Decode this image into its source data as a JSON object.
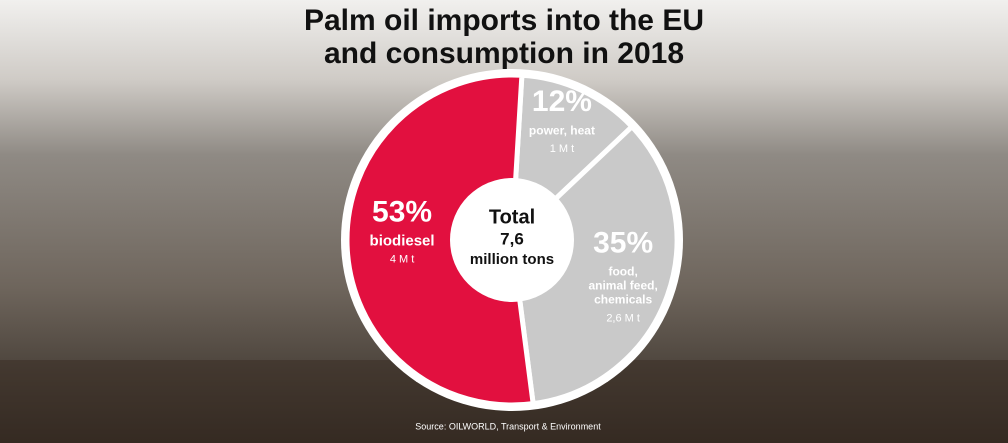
{
  "chart_data": {
    "type": "pie",
    "title": [
      "Palm oil imports into the EU",
      "and consumption in 2018"
    ],
    "categories": [
      "power, heat",
      "food, animal feed, chemicals",
      "biodiesel"
    ],
    "values": [
      12,
      35,
      53
    ],
    "value_labels": [
      "12%",
      "35%",
      "53%"
    ],
    "amounts": [
      "1 M t",
      "2,6 M t",
      "4 M t"
    ],
    "colors": [
      "#c9c9c9",
      "#c9c9c9",
      "#e2103f"
    ],
    "center": [
      "Total",
      "7,6",
      "million tons"
    ],
    "source": "Source: OILWORLD, Transport & Environment"
  }
}
